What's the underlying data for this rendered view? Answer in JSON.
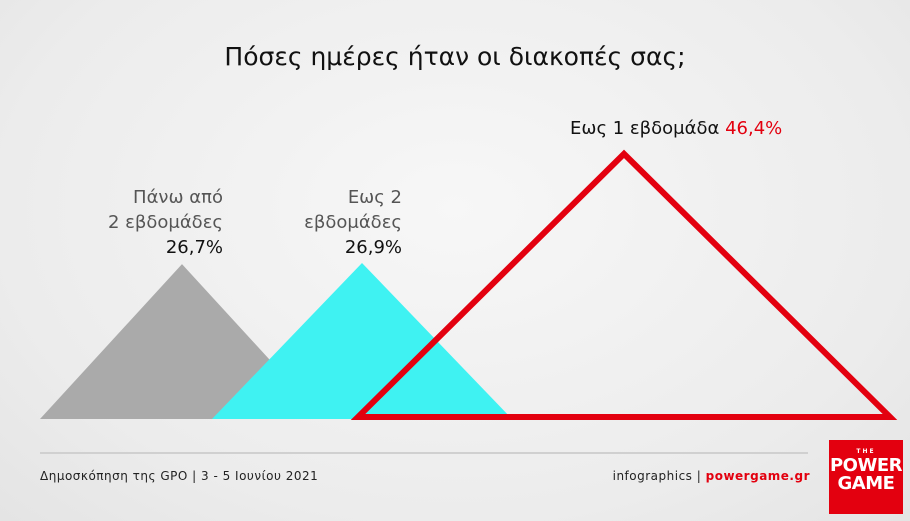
{
  "title": "Πόσες ημέρες ήταν οι διακοπές σας;",
  "chart_data": {
    "type": "area",
    "series": [
      {
        "line1": "Πάνω από",
        "line2": "2 εβδομάδες",
        "value": 26.7,
        "value_label": "26,7%",
        "color": "#aaaaaa"
      },
      {
        "line1": "Εως 2",
        "line2": "εβδομάδες",
        "value": 26.9,
        "value_label": "26,9%",
        "color": "#3ff2f2"
      },
      {
        "line1": "Εως 1 εβδομάδα",
        "line2": "",
        "value": 46.4,
        "value_label": "46,4%",
        "color": "#e3000f"
      }
    ]
  },
  "footer": {
    "source": "Δημοσκόπηση της GPO | 3 - 5 Ιουνίου 2021",
    "credit": "infographics |",
    "site": "powergame.gr"
  },
  "logo": {
    "line1": "THE",
    "line2": "POWER",
    "line3": "GAME"
  }
}
